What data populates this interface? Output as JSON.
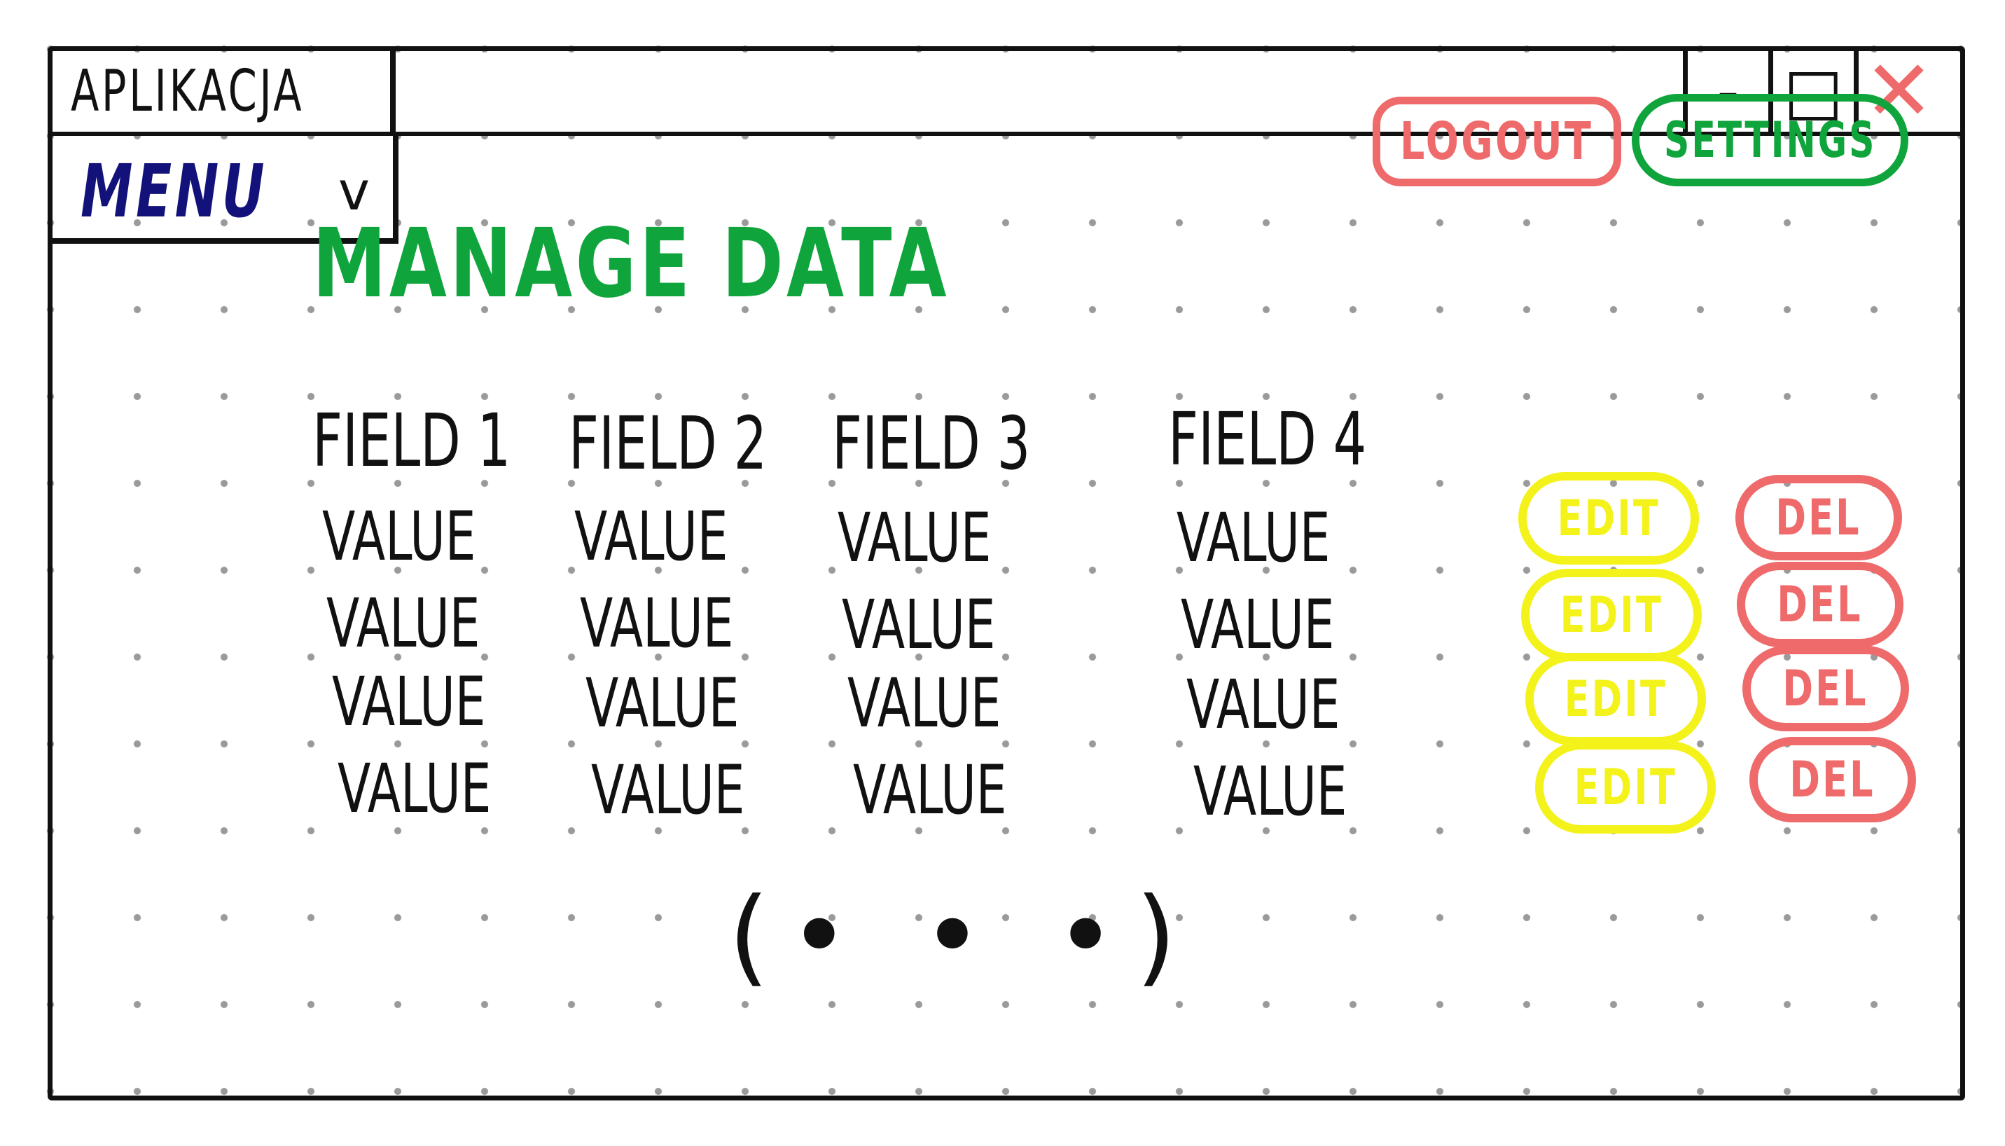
{
  "window": {
    "title": "APLIKACJA",
    "controls": {
      "minimize": "-",
      "maximize": "□",
      "close": "✕"
    }
  },
  "menu": {
    "label": "MENU",
    "caret": "v"
  },
  "header": {
    "logout_label": "LOGOUT",
    "settings_label": "SETTINGS"
  },
  "page": {
    "title": "MANAGE DATA"
  },
  "table": {
    "columns": [
      "FIELD 1",
      "FIELD 2",
      "FIELD 3",
      "FIELD 4"
    ],
    "rows": [
      [
        "VALUE",
        "VALUE",
        "VALUE",
        "VALUE"
      ],
      [
        "VALUE",
        "VALUE",
        "VALUE",
        "VALUE"
      ],
      [
        "VALUE",
        "VALUE",
        "VALUE",
        "VALUE"
      ],
      [
        "VALUE",
        "VALUE",
        "VALUE",
        "VALUE"
      ]
    ],
    "row_actions": {
      "edit_label": "EDIT",
      "delete_label": "DEL"
    }
  },
  "pagination": {
    "more_label": "(• • •)"
  },
  "colors": {
    "menu": "#12127a",
    "title": "#10a53c",
    "logout": "#ef6a6a",
    "settings": "#10a53c",
    "edit": "#f4f21b",
    "delete": "#ef6a6a"
  }
}
